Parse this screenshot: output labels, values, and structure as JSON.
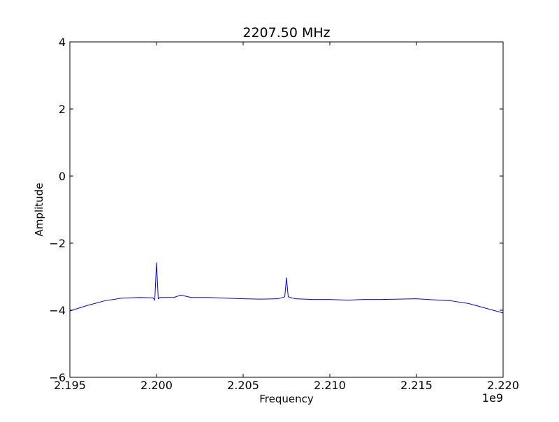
{
  "chart_data": {
    "type": "line",
    "title": "2207.50 MHz",
    "xlabel": "Frequency",
    "ylabel": "Amplitude",
    "x_offset_label": "1e9",
    "xlim": [
      2.195,
      2.22
    ],
    "ylim": [
      -6,
      4
    ],
    "x_ticks": [
      2.195,
      2.2,
      2.205,
      2.21,
      2.215,
      2.22
    ],
    "x_tick_labels": [
      "2.195",
      "2.200",
      "2.205",
      "2.210",
      "2.215",
      "2.220"
    ],
    "y_ticks": [
      4,
      2,
      0,
      -2,
      -4,
      -6
    ],
    "y_tick_labels": [
      "4",
      "2",
      "0",
      "−2",
      "−4",
      "−6"
    ],
    "grid": false,
    "series": [
      {
        "color": "#0000ff",
        "x": [
          2.195,
          2.196,
          2.197,
          2.198,
          2.199,
          2.1998,
          2.1999,
          2.2,
          2.2001,
          2.2002,
          2.201,
          2.2014,
          2.202,
          2.203,
          2.204,
          2.205,
          2.206,
          2.207,
          2.2074,
          2.2075,
          2.2076,
          2.208,
          2.209,
          2.21,
          2.211,
          2.212,
          2.213,
          2.214,
          2.215,
          2.216,
          2.217,
          2.218,
          2.219,
          2.22
        ],
        "y": [
          -4.02,
          -3.86,
          -3.72,
          -3.64,
          -3.62,
          -3.63,
          -3.7,
          -2.58,
          -3.66,
          -3.62,
          -3.62,
          -3.55,
          -3.62,
          -3.62,
          -3.64,
          -3.66,
          -3.67,
          -3.66,
          -3.6,
          -3.03,
          -3.6,
          -3.66,
          -3.68,
          -3.68,
          -3.7,
          -3.68,
          -3.68,
          -3.67,
          -3.66,
          -3.69,
          -3.72,
          -3.8,
          -3.94,
          -4.08
        ]
      }
    ]
  }
}
